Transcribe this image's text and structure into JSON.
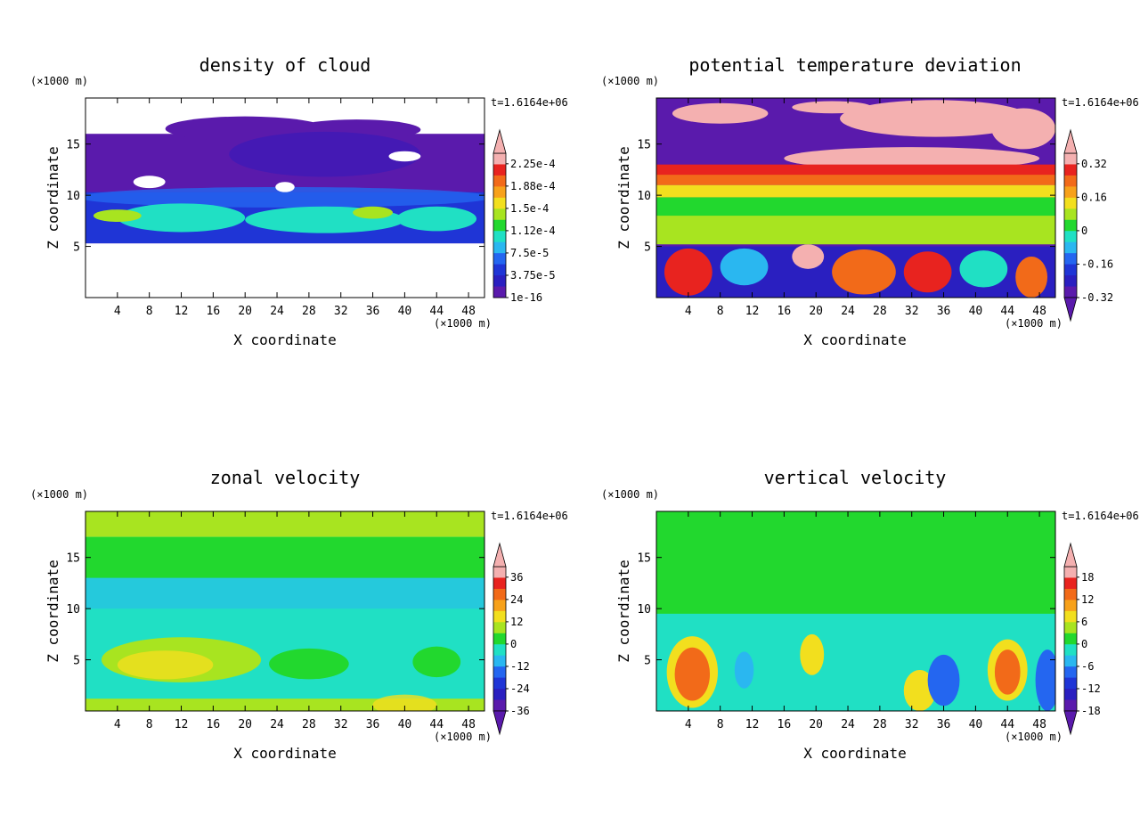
{
  "chart_data": [
    {
      "type": "heatmap",
      "title": "density of cloud",
      "xlabel": "X coordinate",
      "ylabel": "Z coordinate",
      "x_unit": "(×1000 m)",
      "y_unit": "(×1000 m)",
      "time_label": "t=1.6164e+06",
      "xlim": [
        0,
        50
      ],
      "ylim": [
        0,
        19.5
      ],
      "x_ticks": [
        "4",
        "8",
        "12",
        "16",
        "20",
        "24",
        "28",
        "32",
        "36",
        "40",
        "44",
        "48"
      ],
      "y_ticks": [
        "5",
        "10",
        "15"
      ],
      "colorbar": {
        "labels": [
          "2.25e-4",
          "1.88e-4",
          "1.5e-4",
          "1.12e-4",
          "7.5e-5",
          "3.75e-5",
          "1e-16"
        ],
        "colors": [
          "#f4b0b0",
          "#e8231f",
          "#f26a19",
          "#f7a11a",
          "#f2df1e",
          "#a8e420",
          "#22d82e",
          "#20e0c4",
          "#2ab7f0",
          "#2466f0",
          "#1f35d6",
          "#2a1fc0",
          "#5a1aac"
        ],
        "arrow_top": true,
        "arrow_bottom": false
      },
      "color_description": "cloud layer between z≈5 and z≈17, purple upper layer, blue/cyan/green band near z≈6–9, white elsewhere",
      "colors": {
        "layer_top": "#5a1aac",
        "layer_mid": "#1f35d6",
        "layer_low": "#20e0c4",
        "layer_base": "#a8e420"
      }
    },
    {
      "type": "heatmap",
      "title": "potential temperature deviation",
      "xlabel": "X coordinate",
      "ylabel": "Z coordinate",
      "x_unit": "(×1000 m)",
      "y_unit": "(×1000 m)",
      "time_label": "t=1.6164e+06",
      "xlim": [
        0,
        50
      ],
      "ylim": [
        0,
        19.5
      ],
      "x_ticks": [
        "4",
        "8",
        "12",
        "16",
        "20",
        "24",
        "28",
        "32",
        "36",
        "40",
        "44",
        "48"
      ],
      "y_ticks": [
        "5",
        "10",
        "15"
      ],
      "colorbar": {
        "labels": [
          "0.32",
          "0.16",
          "0",
          "-0.16",
          "-0.32"
        ],
        "colors": [
          "#f4b0b0",
          "#e8231f",
          "#f26a19",
          "#f7a11a",
          "#f2df1e",
          "#a8e420",
          "#22d82e",
          "#20e0c4",
          "#2ab7f0",
          "#2466f0",
          "#1f35d6",
          "#2a1fc0",
          "#5a1aac"
        ],
        "arrow_top": true,
        "arrow_bottom": true
      },
      "colors": {
        "upper": "#5a1aac",
        "warm": "#f4b0b0",
        "mid": "#a8e420",
        "low_mix": "#e8231f"
      }
    },
    {
      "type": "heatmap",
      "title": "zonal velocity",
      "xlabel": "X coordinate",
      "ylabel": "Z coordinate",
      "x_unit": "(×1000 m)",
      "y_unit": "(×1000 m)",
      "time_label": "t=1.6164e+06",
      "xlim": [
        0,
        50
      ],
      "ylim": [
        0,
        19.5
      ],
      "x_ticks": [
        "4",
        "8",
        "12",
        "16",
        "20",
        "24",
        "28",
        "32",
        "36",
        "40",
        "44",
        "48"
      ],
      "y_ticks": [
        "5",
        "10",
        "15"
      ],
      "colorbar": {
        "labels": [
          "36",
          "24",
          "12",
          "0",
          "-12",
          "-24",
          "-36"
        ],
        "colors": [
          "#f4b0b0",
          "#e8231f",
          "#f26a19",
          "#f7a11a",
          "#f2df1e",
          "#a8e420",
          "#22d82e",
          "#20e0c4",
          "#2ab7f0",
          "#2466f0",
          "#1f35d6",
          "#2a1fc0",
          "#5a1aac"
        ],
        "arrow_top": true,
        "arrow_bottom": true
      },
      "colors": {
        "top": "#a8e420",
        "band": "#22d82e",
        "mid": "#20e0c4",
        "low": "#a8e420"
      }
    },
    {
      "type": "heatmap",
      "title": "vertical velocity",
      "xlabel": "X coordinate",
      "ylabel": "Z coordinate",
      "x_unit": "(×1000 m)",
      "y_unit": "(×1000 m)",
      "time_label": "t=1.6164e+06",
      "xlim": [
        0,
        50
      ],
      "ylim": [
        0,
        19.5
      ],
      "x_ticks": [
        "4",
        "8",
        "12",
        "16",
        "20",
        "24",
        "28",
        "32",
        "36",
        "40",
        "44",
        "48"
      ],
      "y_ticks": [
        "5",
        "10",
        "15"
      ],
      "colorbar": {
        "labels": [
          "18",
          "12",
          "6",
          "0",
          "-6",
          "-12",
          "-18"
        ],
        "colors": [
          "#f4b0b0",
          "#e8231f",
          "#f26a19",
          "#f7a11a",
          "#f2df1e",
          "#a8e420",
          "#22d82e",
          "#20e0c4",
          "#2ab7f0",
          "#2466f0",
          "#1f35d6",
          "#2a1fc0",
          "#5a1aac"
        ],
        "arrow_top": true,
        "arrow_bottom": true
      },
      "colors": {
        "bg": "#22d82e",
        "up": "#f26a19",
        "down": "#2466f0"
      }
    }
  ]
}
